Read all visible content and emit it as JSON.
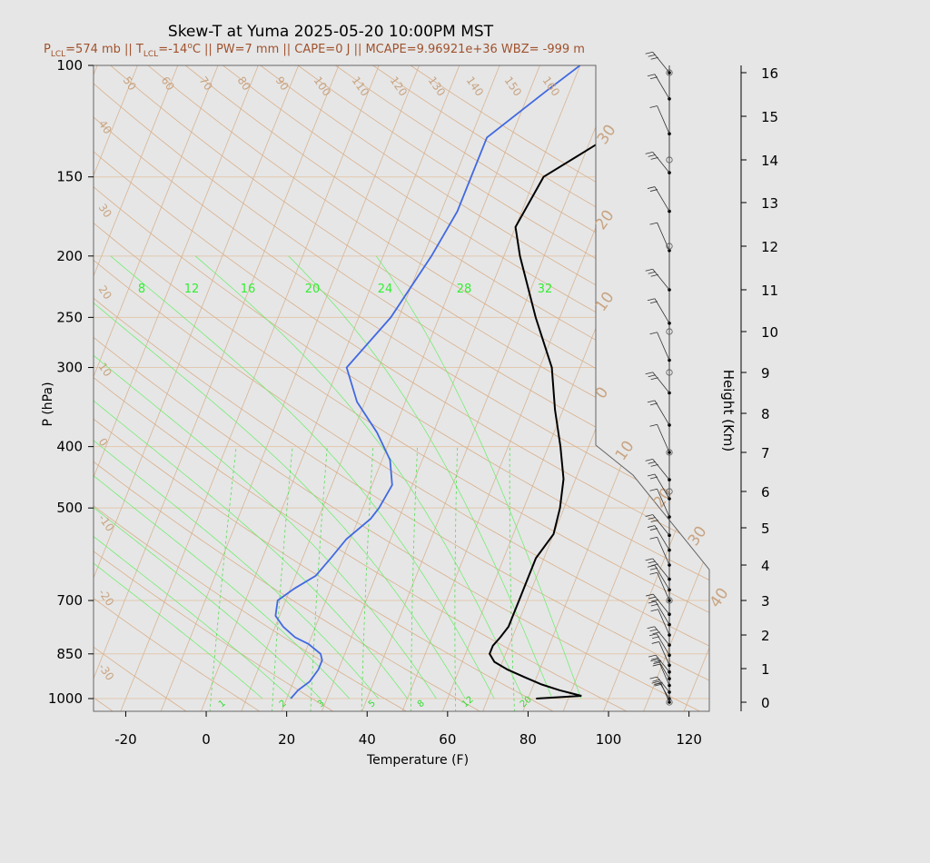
{
  "title": "Skew-T at Yuma 2025-05-20 10:00PM MST",
  "subtitle": {
    "p_lcl_prefix": "P",
    "p_lcl_sub": "LCL",
    "p_lcl_value": "=574 mb || T",
    "t_lcl_sub": "LCL",
    "t_lcl_value": "=-14",
    "deg_sup": "o",
    "rest": "C || PW=7 mm || CAPE=0 J || MCAPE=9.96921e+36 WBZ= -999 m"
  },
  "colors": {
    "background": "#e6e6e6",
    "isotherm": "#d7b595",
    "isobar": "#e2c8ae",
    "dry_adiabat": "#d9b08c",
    "moist_adiabat": "#66ee66",
    "mixing_ratio": "#55dd55",
    "temperature": "#000000",
    "dewpoint": "#4169e1",
    "title_sub": "#a0522d"
  },
  "chart_data": {
    "type": "line",
    "xlabel": "Temperature (F)",
    "ylabel": "P (hPa)",
    "y2label": "Height (Km)",
    "x_ticks": [
      "-20",
      "0",
      "20",
      "40",
      "60",
      "80",
      "100",
      "120"
    ],
    "y_ticks": [
      "100",
      "150",
      "200",
      "250",
      "300",
      "400",
      "500",
      "700",
      "850",
      "1000"
    ],
    "height_ticks": [
      "0",
      "1",
      "2",
      "3",
      "4",
      "5",
      "6",
      "7",
      "8",
      "9",
      "10",
      "11",
      "12",
      "13",
      "14",
      "15",
      "16"
    ],
    "xlim": [
      -28,
      125
    ],
    "ylim": [
      1050,
      100
    ],
    "y_scale": "log",
    "isotherm_labels_top": [
      "50",
      "60",
      "70",
      "80",
      "90",
      "100",
      "110",
      "120",
      "130",
      "140",
      "150",
      "160"
    ],
    "isotherm_labels_left": [
      "40",
      "30",
      "20",
      "10",
      "0",
      "-10",
      "-20",
      "-30"
    ],
    "isotherm_labels_right": [
      "30",
      "20",
      "10",
      "0",
      "10",
      "20",
      "30",
      "40"
    ],
    "moist_adiabat_labels": [
      "8",
      "12",
      "16",
      "20",
      "24",
      "28",
      "32"
    ],
    "mixing_ratio_labels": [
      "1",
      "2",
      "3",
      "5",
      "8",
      "12",
      "20"
    ],
    "series": [
      {
        "name": "temperature",
        "pressure": [
          1000,
          990,
          970,
          950,
          925,
          900,
          875,
          850,
          825,
          800,
          770,
          740,
          700,
          650,
          600,
          550,
          500,
          450,
          400,
          350,
          300,
          250,
          200,
          180,
          150,
          130,
          110,
          100
        ],
        "temp_f": [
          82,
          93,
          87,
          82,
          77,
          72,
          68,
          66,
          66,
          67,
          68,
          68,
          68,
          68,
          68,
          70,
          69,
          67,
          63,
          58,
          53,
          44,
          34,
          30,
          32,
          44,
          58,
          67
        ]
      },
      {
        "name": "dewpoint",
        "pressure": [
          1000,
          970,
          940,
          900,
          870,
          850,
          820,
          800,
          770,
          740,
          700,
          670,
          640,
          600,
          560,
          520,
          500,
          460,
          420,
          380,
          340,
          300,
          250,
          200,
          170,
          130,
          110,
          100
        ],
        "temp_f": [
          21,
          22,
          24,
          25,
          25,
          24,
          20,
          16,
          12,
          9,
          8,
          11,
          15,
          17,
          19,
          23,
          24,
          25,
          22,
          16,
          8,
          2,
          8,
          12,
          14,
          14,
          24,
          30
        ]
      }
    ],
    "surface_heights_km_for_barbs": [
      0,
      0.1,
      0.3,
      0.5,
      0.7,
      0.9,
      1.1,
      1.4,
      1.7,
      2.0,
      2.3,
      2.6,
      3.0,
      3.3,
      3.6,
      4.0,
      4.4,
      4.8,
      5.3,
      5.8,
      6.3,
      7.0,
      7.7,
      8.5,
      9.3,
      10.2,
      11.0,
      11.9,
      12.8,
      13.7,
      14.6,
      15.4,
      16.2
    ]
  }
}
